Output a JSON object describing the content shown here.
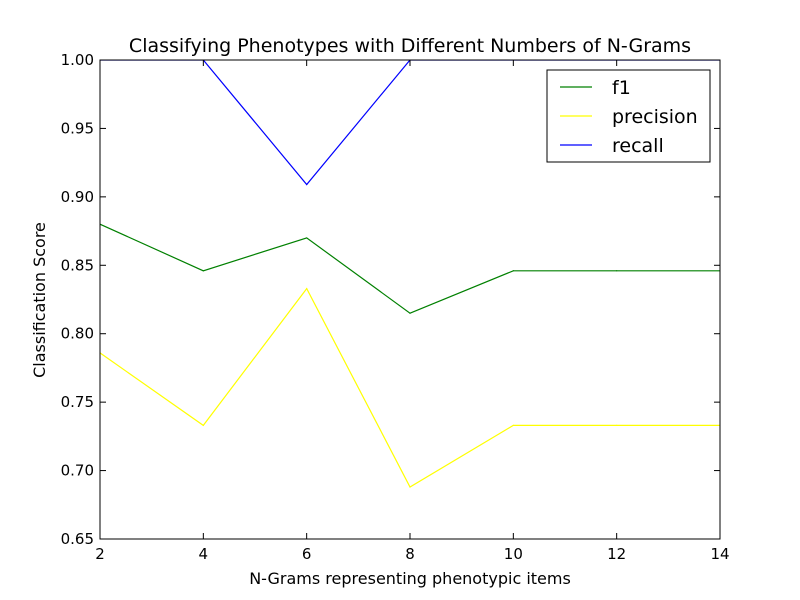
{
  "chart_data": {
    "type": "line",
    "title": "Classifying Phenotypes with Different Numbers of N-Grams",
    "xlabel": "N-Grams representing phenotypic items",
    "ylabel": "Classification Score",
    "xlim": [
      2,
      14
    ],
    "ylim": [
      0.65,
      1.0
    ],
    "xticks": [
      "2",
      "4",
      "6",
      "8",
      "10",
      "12",
      "14"
    ],
    "yticks": [
      "0.65",
      "0.70",
      "0.75",
      "0.80",
      "0.85",
      "0.90",
      "0.95",
      "1.00"
    ],
    "x": [
      2,
      4,
      6,
      8,
      10,
      12,
      14
    ],
    "grid": false,
    "legend_position": "top-right",
    "series": [
      {
        "name": "f1",
        "color": "#008000",
        "values": [
          0.88,
          0.846,
          0.87,
          0.815,
          0.846,
          0.846,
          0.846
        ]
      },
      {
        "name": "precision",
        "color": "#ffff00",
        "values": [
          0.786,
          0.733,
          0.833,
          0.688,
          0.733,
          0.733,
          0.733
        ]
      },
      {
        "name": "recall",
        "color": "#0000ff",
        "values": [
          1.0,
          1.0,
          0.909,
          1.0,
          1.0,
          1.0,
          1.0
        ]
      }
    ]
  }
}
